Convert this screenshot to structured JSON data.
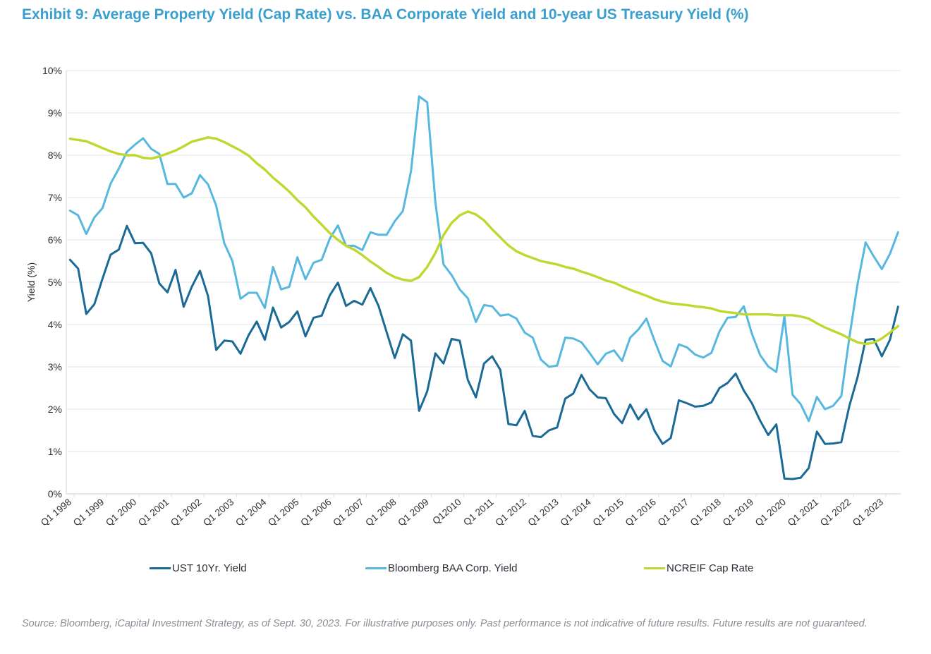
{
  "title": "Exhibit 9: Average Property Yield (Cap Rate) vs. BAA Corporate Yield and 10-year US Treasury Yield (%)",
  "source": "Source: Bloomberg, iCapital Investment Strategy, as of Sept. 30, 2023. For illustrative purposes only. Past performance is not indicative of future results. Future results are not guaranteed.",
  "chart_data": {
    "type": "line",
    "title": "Exhibit 9: Average Property Yield (Cap Rate) vs. BAA Corporate Yield and 10-year US Treasury Yield (%)",
    "xlabel": "",
    "ylabel": "Yield (%)",
    "ylim": [
      0,
      10
    ],
    "yticks": [
      "0%",
      "1%",
      "2%",
      "3%",
      "4%",
      "5%",
      "6%",
      "7%",
      "8%",
      "9%",
      "10%"
    ],
    "grid": "horizontal",
    "legend": "bottom",
    "xtick_labels": [
      "Q1 1998",
      "Q1 1999",
      "Q1 2000",
      "Q1 2001",
      "Q1 2002",
      "Q1 2003",
      "Q1 2004",
      "Q1 2005",
      "Q1 2006",
      "Q1 2007",
      "Q1 2008",
      "Q1 2009",
      "Q12010",
      "Q1 2011",
      "Q1 2012",
      "Q1 2013",
      "Q1 2014",
      "Q1 2015",
      "Q1 2016",
      "Q1 2017",
      "Q1 2018",
      "Q1 2019",
      "Q1 2020",
      "Q1 2021",
      "Q1 2022",
      "Q1 2023"
    ],
    "x": [
      "Q1 1998",
      "Q2 1998",
      "Q3 1998",
      "Q4 1998",
      "Q1 1999",
      "Q2 1999",
      "Q3 1999",
      "Q4 1999",
      "Q1 2000",
      "Q2 2000",
      "Q3 2000",
      "Q4 2000",
      "Q1 2001",
      "Q2 2001",
      "Q3 2001",
      "Q4 2001",
      "Q1 2002",
      "Q2 2002",
      "Q3 2002",
      "Q4 2002",
      "Q1 2003",
      "Q2 2003",
      "Q3 2003",
      "Q4 2003",
      "Q1 2004",
      "Q2 2004",
      "Q3 2004",
      "Q4 2004",
      "Q1 2005",
      "Q2 2005",
      "Q3 2005",
      "Q4 2005",
      "Q1 2006",
      "Q2 2006",
      "Q3 2006",
      "Q4 2006",
      "Q1 2007",
      "Q2 2007",
      "Q3 2007",
      "Q4 2007",
      "Q1 2008",
      "Q2 2008",
      "Q3 2008",
      "Q4 2008",
      "Q1 2009",
      "Q2 2009",
      "Q3 2009",
      "Q4 2009",
      "Q1 2010",
      "Q2 2010",
      "Q3 2010",
      "Q4 2010",
      "Q1 2011",
      "Q2 2011",
      "Q3 2011",
      "Q4 2011",
      "Q1 2012",
      "Q2 2012",
      "Q3 2012",
      "Q4 2012",
      "Q1 2013",
      "Q2 2013",
      "Q3 2013",
      "Q4 2013",
      "Q1 2014",
      "Q2 2014",
      "Q3 2014",
      "Q4 2014",
      "Q1 2015",
      "Q2 2015",
      "Q3 2015",
      "Q4 2015",
      "Q1 2016",
      "Q2 2016",
      "Q3 2016",
      "Q4 2016",
      "Q1 2017",
      "Q2 2017",
      "Q3 2017",
      "Q4 2017",
      "Q1 2018",
      "Q2 2018",
      "Q3 2018",
      "Q4 2018",
      "Q1 2019",
      "Q2 2019",
      "Q3 2019",
      "Q4 2019",
      "Q1 2020",
      "Q2 2020",
      "Q3 2020",
      "Q4 2020",
      "Q1 2021",
      "Q2 2021",
      "Q3 2021",
      "Q4 2021",
      "Q1 2022",
      "Q2 2022",
      "Q3 2022",
      "Q4 2022",
      "Q1 2023",
      "Q2 2023",
      "Q3 2023"
    ],
    "series": [
      {
        "name": "UST 10Yr. Yield",
        "color": "#1b6a96",
        "values": [
          5.53,
          5.32,
          4.25,
          4.48,
          5.08,
          5.65,
          5.77,
          6.33,
          5.92,
          5.93,
          5.68,
          4.97,
          4.76,
          5.29,
          4.42,
          4.89,
          5.27,
          4.67,
          3.4,
          3.62,
          3.6,
          3.31,
          3.75,
          4.07,
          3.64,
          4.4,
          3.93,
          4.06,
          4.31,
          3.72,
          4.16,
          4.21,
          4.69,
          4.99,
          4.44,
          4.56,
          4.47,
          4.86,
          4.44,
          3.82,
          3.21,
          3.77,
          3.62,
          1.96,
          2.42,
          3.32,
          3.08,
          3.66,
          3.62,
          2.69,
          2.28,
          3.08,
          3.25,
          2.93,
          1.65,
          1.62,
          1.96,
          1.37,
          1.34,
          1.5,
          1.57,
          2.25,
          2.37,
          2.81,
          2.47,
          2.28,
          2.26,
          1.89,
          1.67,
          2.11,
          1.76,
          2.0,
          1.49,
          1.18,
          1.32,
          2.21,
          2.14,
          2.06,
          2.08,
          2.16,
          2.5,
          2.62,
          2.84,
          2.44,
          2.14,
          1.73,
          1.39,
          1.64,
          0.36,
          0.35,
          0.38,
          0.61,
          1.47,
          1.18,
          1.19,
          1.22,
          2.08,
          2.75,
          3.64,
          3.66,
          3.25,
          3.64,
          4.42
        ]
      },
      {
        "name": "Bloomberg BAA Corp. Yield",
        "color": "#56b8de",
        "values": [
          6.69,
          6.58,
          6.14,
          6.53,
          6.75,
          7.33,
          7.68,
          8.08,
          8.25,
          8.4,
          8.15,
          8.03,
          7.32,
          7.32,
          7.0,
          7.1,
          7.53,
          7.31,
          6.81,
          5.92,
          5.5,
          4.61,
          4.75,
          4.75,
          4.39,
          5.36,
          4.83,
          4.89,
          5.59,
          5.07,
          5.46,
          5.53,
          6.03,
          6.34,
          5.86,
          5.86,
          5.76,
          6.18,
          6.12,
          6.12,
          6.44,
          6.68,
          7.62,
          9.39,
          9.25,
          6.89,
          5.42,
          5.17,
          4.83,
          4.62,
          4.06,
          4.46,
          4.43,
          4.21,
          4.24,
          4.14,
          3.81,
          3.69,
          3.17,
          3.0,
          3.03,
          3.69,
          3.67,
          3.58,
          3.33,
          3.06,
          3.31,
          3.39,
          3.14,
          3.69,
          3.88,
          4.14,
          3.62,
          3.14,
          3.01,
          3.53,
          3.46,
          3.29,
          3.22,
          3.33,
          3.84,
          4.16,
          4.18,
          4.43,
          3.78,
          3.28,
          3.01,
          2.88,
          4.2,
          2.34,
          2.12,
          1.72,
          2.29,
          2.0,
          2.08,
          2.31,
          3.7,
          4.95,
          5.94,
          5.61,
          5.31,
          5.67,
          6.18
        ]
      },
      {
        "name": "NCREIF Cap Rate",
        "color": "#c0d72f",
        "values": [
          8.39,
          8.36,
          8.33,
          8.25,
          8.17,
          8.09,
          8.03,
          8.0,
          8.0,
          7.94,
          7.92,
          7.97,
          8.04,
          8.11,
          8.21,
          8.32,
          8.37,
          8.42,
          8.39,
          8.31,
          8.21,
          8.11,
          7.99,
          7.81,
          7.66,
          7.47,
          7.31,
          7.14,
          6.94,
          6.77,
          6.55,
          6.36,
          6.16,
          6.0,
          5.86,
          5.77,
          5.64,
          5.49,
          5.36,
          5.22,
          5.12,
          5.06,
          5.03,
          5.12,
          5.36,
          5.69,
          6.11,
          6.4,
          6.58,
          6.67,
          6.6,
          6.46,
          6.25,
          6.06,
          5.87,
          5.73,
          5.64,
          5.57,
          5.5,
          5.46,
          5.42,
          5.36,
          5.32,
          5.25,
          5.19,
          5.12,
          5.04,
          4.99,
          4.9,
          4.82,
          4.75,
          4.68,
          4.6,
          4.54,
          4.5,
          4.48,
          4.46,
          4.43,
          4.41,
          4.38,
          4.32,
          4.29,
          4.27,
          4.24,
          4.24,
          4.24,
          4.24,
          4.22,
          4.22,
          4.22,
          4.19,
          4.14,
          4.03,
          3.93,
          3.85,
          3.77,
          3.67,
          3.58,
          3.54,
          3.57,
          3.67,
          3.81,
          3.96
        ]
      }
    ]
  }
}
